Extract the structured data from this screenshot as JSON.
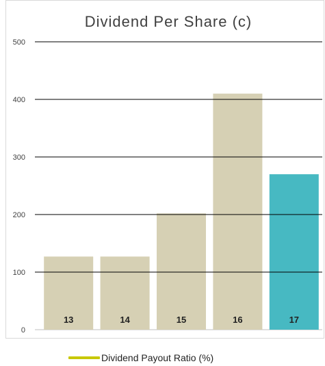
{
  "chart_data": {
    "type": "bar",
    "title": "Dividend Per Share (c)",
    "categories": [
      "13",
      "14",
      "15",
      "16",
      "17"
    ],
    "values": [
      127,
      127,
      202,
      410,
      270
    ],
    "bar_colors": [
      "#d6d0b4",
      "#d6d0b4",
      "#d6d0b4",
      "#d6d0b4",
      "#47b9c2"
    ],
    "ylim": [
      0,
      500
    ],
    "yticks": [
      0,
      100,
      200,
      300,
      400,
      500
    ],
    "grid": true,
    "gridline_color": "#000000",
    "legend": {
      "position": "bottom",
      "entries": [
        {
          "label": "Dividend Payout Ratio (%)",
          "color": "#c8c800",
          "marker": "line"
        }
      ]
    }
  }
}
